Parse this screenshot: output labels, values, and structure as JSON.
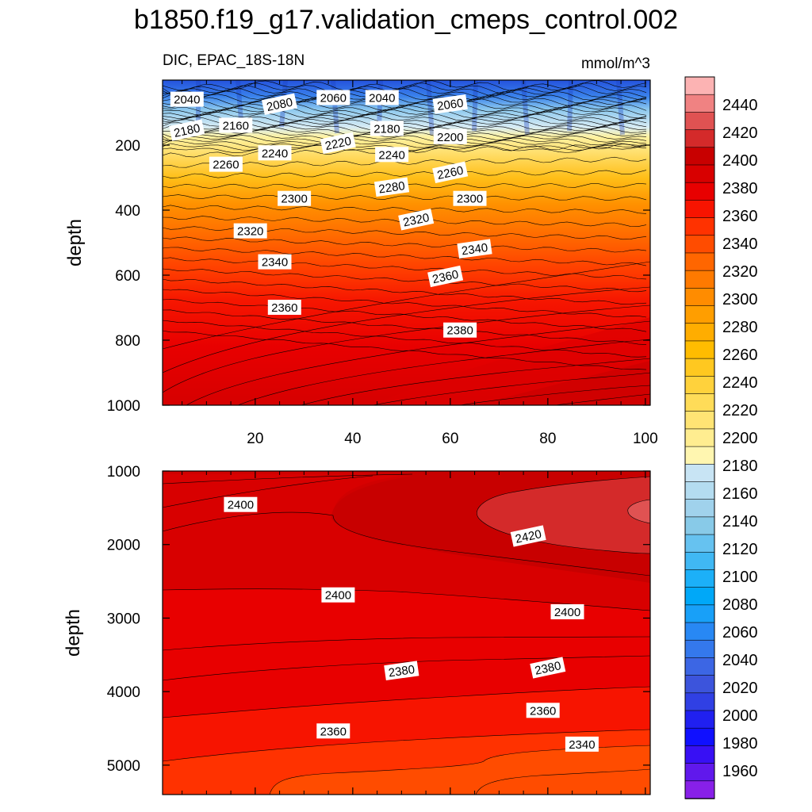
{
  "title": "b1850.f19_g17.validation_cmeps_control.002",
  "chart_data": [
    {
      "type": "contour",
      "panel": "upper",
      "left_label": "DIC, EPAC_18S-18N",
      "right_label": "mmol/m^3",
      "ylabel": "depth",
      "xlabel": "",
      "xlim": [
        1,
        101
      ],
      "ylim": [
        1000,
        0
      ],
      "x_ticks": [
        20,
        40,
        60,
        80,
        100
      ],
      "y_ticks": [
        200,
        400,
        600,
        800,
        1000
      ],
      "contour_labels": [
        {
          "text": "2040",
          "x": 6,
          "y": 60
        },
        {
          "text": "2080",
          "x": 25,
          "y": 75
        },
        {
          "text": "2060",
          "x": 36,
          "y": 55
        },
        {
          "text": "2040",
          "x": 46,
          "y": 55
        },
        {
          "text": "2060",
          "x": 60,
          "y": 75
        },
        {
          "text": "2180",
          "x": 6,
          "y": 155
        },
        {
          "text": "2160",
          "x": 16,
          "y": 140
        },
        {
          "text": "2180",
          "x": 47,
          "y": 150
        },
        {
          "text": "2200",
          "x": 60,
          "y": 175
        },
        {
          "text": "2220",
          "x": 37,
          "y": 195
        },
        {
          "text": "2240",
          "x": 24,
          "y": 225
        },
        {
          "text": "2240",
          "x": 48,
          "y": 230
        },
        {
          "text": "2260",
          "x": 14,
          "y": 260
        },
        {
          "text": "2260",
          "x": 60,
          "y": 285
        },
        {
          "text": "2280",
          "x": 48,
          "y": 330
        },
        {
          "text": "2300",
          "x": 28,
          "y": 365
        },
        {
          "text": "2300",
          "x": 64,
          "y": 365
        },
        {
          "text": "2320",
          "x": 53,
          "y": 430
        },
        {
          "text": "2320",
          "x": 19,
          "y": 465
        },
        {
          "text": "2340",
          "x": 65,
          "y": 520
        },
        {
          "text": "2340",
          "x": 24,
          "y": 560
        },
        {
          "text": "2360",
          "x": 59,
          "y": 605
        },
        {
          "text": "2360",
          "x": 26,
          "y": 700
        },
        {
          "text": "2380",
          "x": 62,
          "y": 770
        }
      ]
    },
    {
      "type": "contour",
      "panel": "lower",
      "ylabel": "depth",
      "xlabel": "",
      "xlim": [
        1,
        101
      ],
      "ylim": [
        5400,
        1000
      ],
      "y_ticks": [
        1000,
        2000,
        3000,
        4000,
        5000
      ],
      "contour_labels": [
        {
          "text": "2400",
          "x": 17,
          "y": 1460
        },
        {
          "text": "2420",
          "x": 76,
          "y": 1890
        },
        {
          "text": "2400",
          "x": 37,
          "y": 2690
        },
        {
          "text": "2400",
          "x": 84,
          "y": 2920
        },
        {
          "text": "2380",
          "x": 50,
          "y": 3720
        },
        {
          "text": "2380",
          "x": 80,
          "y": 3680
        },
        {
          "text": "2360",
          "x": 79,
          "y": 4260
        },
        {
          "text": "2360",
          "x": 36,
          "y": 4540
        },
        {
          "text": "2340",
          "x": 87,
          "y": 4720
        }
      ]
    }
  ],
  "colorbar": {
    "labels": [
      "2440",
      "2420",
      "2400",
      "2380",
      "2360",
      "2340",
      "2320",
      "2300",
      "2280",
      "2260",
      "2240",
      "2220",
      "2200",
      "2180",
      "2160",
      "2140",
      "2120",
      "2100",
      "2080",
      "2060",
      "2040",
      "2020",
      "2000",
      "1980",
      "1960"
    ],
    "colors": [
      "#fcb3b3",
      "#f08282",
      "#e05252",
      "#d42a2a",
      "#c80000",
      "#d80000",
      "#e80000",
      "#f71400",
      "#ff3200",
      "#ff4c00",
      "#ff6600",
      "#ff7a00",
      "#ff8c00",
      "#ff9e00",
      "#ffad00",
      "#ffbc00",
      "#ffc820",
      "#ffd23c",
      "#ffdc58",
      "#ffe474",
      "#ffed90",
      "#fff6b0",
      "#c8e4f4",
      "#b4dcf0",
      "#a0d2ec",
      "#88cae8",
      "#66c2f0",
      "#40b8f4",
      "#1cb0f8",
      "#00a8f8",
      "#18a0f8",
      "#2888f4",
      "#3478ec",
      "#3c66e4",
      "#3c54dc",
      "#3040e4",
      "#2020f0",
      "#1010ff",
      "#3810f4",
      "#6018ec",
      "#8820e8"
    ]
  },
  "colors": {
    "deep_red": "#c80000",
    "core_red": "#d42a2a",
    "orange": "#ff6600",
    "yellow": "#ffd23c",
    "light_blue": "#c8e4f4",
    "blue": "#2460e4"
  }
}
